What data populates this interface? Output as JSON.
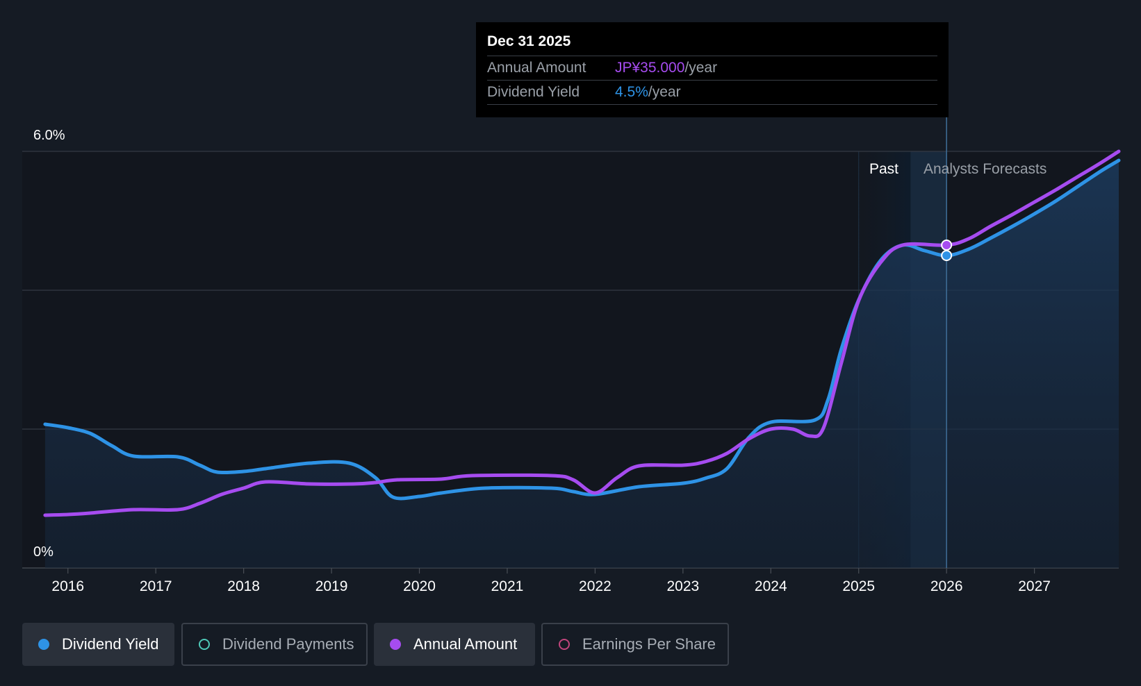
{
  "tooltip": {
    "date": "Dec 31 2025",
    "rows": [
      {
        "label": "Annual Amount",
        "value": "JP¥35.000",
        "unit": "/year",
        "color": "#a64cf0"
      },
      {
        "label": "Dividend Yield",
        "value": "4.5%",
        "unit": "/year",
        "color": "#2e93e6"
      }
    ]
  },
  "regions": {
    "past": "Past",
    "forecast": "Analysts Forecasts"
  },
  "legend": [
    {
      "label": "Dividend Yield",
      "color": "#2e93e6",
      "active": true,
      "filled": true
    },
    {
      "label": "Dividend Payments",
      "color": "#4fc9b8",
      "active": false,
      "filled": false
    },
    {
      "label": "Annual Amount",
      "color": "#a64cf0",
      "active": true,
      "filled": true
    },
    {
      "label": "Earnings Per Share",
      "color": "#c0457c",
      "active": false,
      "filled": false
    }
  ],
  "chart_data": {
    "type": "line",
    "y_tick_labels": [
      "6.0%",
      "0%"
    ],
    "ylim": [
      0,
      6.0
    ],
    "xlim": [
      2015.48,
      2027.96
    ],
    "x_ticks": [
      "2016",
      "2017",
      "2018",
      "2019",
      "2020",
      "2021",
      "2022",
      "2023",
      "2024",
      "2025",
      "2026",
      "2027"
    ],
    "grid": true,
    "past_region": [
      2025.0,
      2025.59
    ],
    "forecast_region": [
      2025.59,
      2026.0
    ],
    "series": [
      {
        "name": "Dividend Yield",
        "color": "#2e93e6",
        "area": true,
        "points": [
          [
            2015.74,
            2.07
          ],
          [
            2016.0,
            2.02
          ],
          [
            2016.25,
            1.94
          ],
          [
            2016.5,
            1.76
          ],
          [
            2016.75,
            1.61
          ],
          [
            2017.25,
            1.6
          ],
          [
            2017.5,
            1.48
          ],
          [
            2017.7,
            1.38
          ],
          [
            2018.0,
            1.39
          ],
          [
            2018.25,
            1.43
          ],
          [
            2018.75,
            1.51
          ],
          [
            2019.2,
            1.51
          ],
          [
            2019.5,
            1.3
          ],
          [
            2019.7,
            1.02
          ],
          [
            2020.0,
            1.03
          ],
          [
            2020.25,
            1.08
          ],
          [
            2020.75,
            1.15
          ],
          [
            2021.5,
            1.15
          ],
          [
            2021.75,
            1.1
          ],
          [
            2022.0,
            1.06
          ],
          [
            2022.5,
            1.17
          ],
          [
            2023.0,
            1.22
          ],
          [
            2023.25,
            1.29
          ],
          [
            2023.5,
            1.43
          ],
          [
            2023.75,
            1.88
          ],
          [
            2024.0,
            2.1
          ],
          [
            2024.5,
            2.13
          ],
          [
            2024.65,
            2.42
          ],
          [
            2024.8,
            3.14
          ],
          [
            2025.0,
            3.86
          ],
          [
            2025.25,
            4.43
          ],
          [
            2025.5,
            4.65
          ],
          [
            2025.75,
            4.57
          ],
          [
            2026.0,
            4.5
          ],
          [
            2026.25,
            4.59
          ],
          [
            2026.5,
            4.75
          ],
          [
            2026.75,
            4.92
          ],
          [
            2027.0,
            5.1
          ],
          [
            2027.25,
            5.29
          ],
          [
            2027.5,
            5.5
          ],
          [
            2027.75,
            5.71
          ],
          [
            2027.96,
            5.87
          ]
        ]
      },
      {
        "name": "Annual Amount",
        "color": "#a64cf0",
        "area": false,
        "points": [
          [
            2015.74,
            0.76
          ],
          [
            2016.0,
            0.77
          ],
          [
            2016.25,
            0.79
          ],
          [
            2016.75,
            0.84
          ],
          [
            2017.25,
            0.84
          ],
          [
            2017.5,
            0.93
          ],
          [
            2017.75,
            1.06
          ],
          [
            2018.0,
            1.15
          ],
          [
            2018.25,
            1.24
          ],
          [
            2018.75,
            1.21
          ],
          [
            2019.25,
            1.21
          ],
          [
            2019.5,
            1.23
          ],
          [
            2019.75,
            1.27
          ],
          [
            2020.25,
            1.28
          ],
          [
            2020.6,
            1.33
          ],
          [
            2021.5,
            1.33
          ],
          [
            2021.75,
            1.27
          ],
          [
            2022.0,
            1.08
          ],
          [
            2022.25,
            1.3
          ],
          [
            2022.5,
            1.47
          ],
          [
            2023.0,
            1.48
          ],
          [
            2023.25,
            1.53
          ],
          [
            2023.5,
            1.65
          ],
          [
            2023.75,
            1.86
          ],
          [
            2024.0,
            2.0
          ],
          [
            2024.25,
            2.0
          ],
          [
            2024.45,
            1.9
          ],
          [
            2024.6,
            2.02
          ],
          [
            2024.8,
            2.94
          ],
          [
            2025.0,
            3.85
          ],
          [
            2025.25,
            4.4
          ],
          [
            2025.5,
            4.65
          ],
          [
            2026.0,
            4.65
          ],
          [
            2026.25,
            4.74
          ],
          [
            2026.5,
            4.92
          ],
          [
            2026.75,
            5.09
          ],
          [
            2027.0,
            5.27
          ],
          [
            2027.25,
            5.45
          ],
          [
            2027.5,
            5.64
          ],
          [
            2027.75,
            5.83
          ],
          [
            2027.96,
            6.0
          ]
        ]
      }
    ],
    "markers": [
      {
        "series": "Annual Amount",
        "x": 2026.0,
        "y": 4.65
      },
      {
        "series": "Dividend Yield",
        "x": 2026.0,
        "y": 4.5
      }
    ]
  }
}
